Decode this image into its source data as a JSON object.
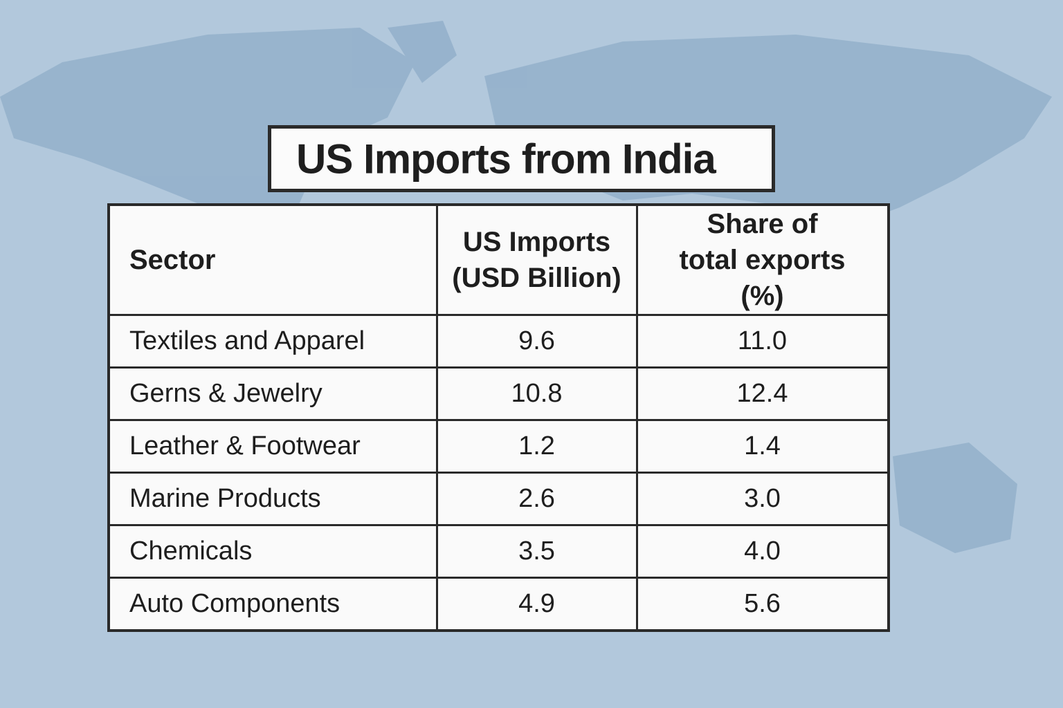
{
  "title": "US Imports from India",
  "table": {
    "headers": [
      "Sector",
      "US Imports (USD Billion)",
      "Share of total exports (%)"
    ],
    "rows": [
      [
        "Textiles and Apparel",
        "9.6",
        "11.0"
      ],
      [
        "Gerns & Jewelry",
        "10.8",
        "12.4"
      ],
      [
        "Leather & Footwear",
        "1.2",
        "1.4"
      ],
      [
        "Marine Products",
        "2.6",
        "3.0"
      ],
      [
        "Chemicals",
        "3.5",
        "4.0"
      ],
      [
        "Auto Components",
        "4.9",
        "5.6"
      ]
    ]
  }
}
